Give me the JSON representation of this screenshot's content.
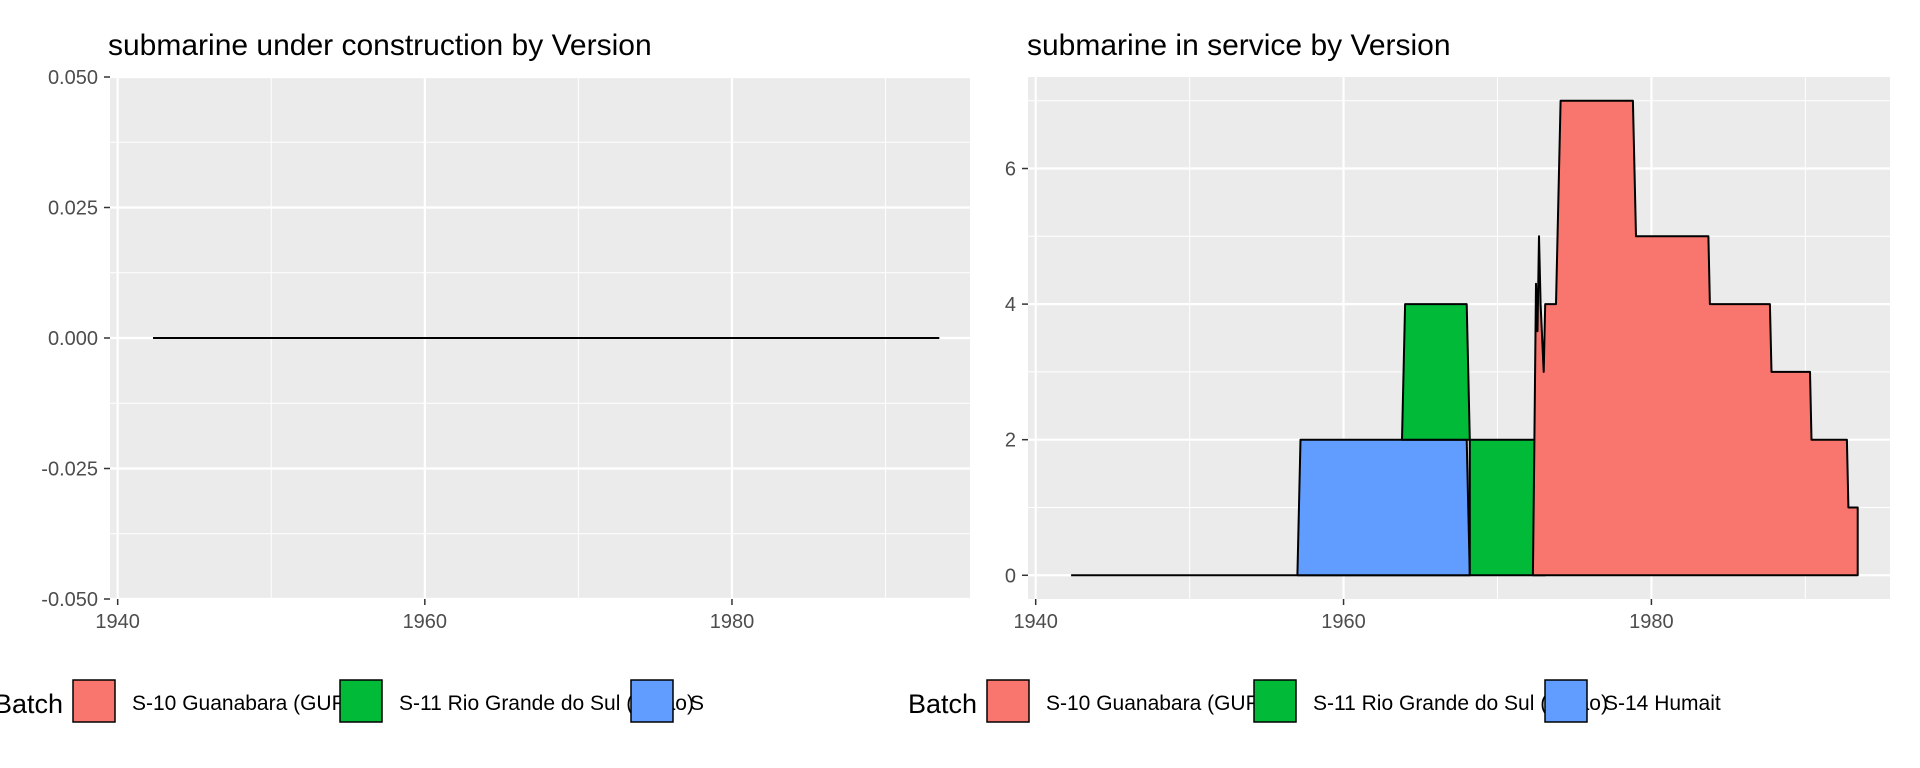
{
  "chart_data": [
    {
      "type": "area",
      "title": "submarine under construction by Version",
      "xlabel": "",
      "ylabel": "",
      "xlim": [
        1939.5,
        1995.5
      ],
      "ylim": [
        -0.05,
        0.05
      ],
      "x_ticks": [
        1940,
        1960,
        1980
      ],
      "x_tick_labels": [
        "1940",
        "1960",
        "1980"
      ],
      "y_ticks": [
        0.05,
        0.025,
        0.0,
        -0.025,
        -0.05
      ],
      "y_tick_labels": [
        "0.050",
        "0.025",
        "0.000",
        "-0.025",
        "-0.050"
      ],
      "grid": true,
      "series": [
        {
          "points": [
            [
              1942.3,
              0
            ],
            [
              1993.5,
              0
            ]
          ]
        }
      ],
      "legend": {
        "title": "Batch",
        "position": "bottom",
        "entries": [
          {
            "label": "S-10 Guanabara (GUPPY)",
            "color": "#F8766D"
          },
          {
            "label": "S-11 Rio Grande do Sul (Balao)",
            "color": "#00BA38"
          },
          {
            "label": "S",
            "color": "#619CFF"
          }
        ]
      }
    },
    {
      "type": "area",
      "title": "submarine in service by Version",
      "xlabel": "",
      "ylabel": "",
      "xlim": [
        1939.5,
        1995.5
      ],
      "ylim": [
        -0.35,
        7.35
      ],
      "x_ticks": [
        1940,
        1960,
        1980
      ],
      "x_tick_labels": [
        "1940",
        "1960",
        "1980"
      ],
      "y_ticks": [
        0,
        2,
        4,
        6
      ],
      "y_tick_labels": [
        "0",
        "2",
        "4",
        "6"
      ],
      "grid": true,
      "series": [
        {
          "name": "S-14 Humaitá (Oberon)",
          "color": "#619CFF",
          "baseline": [
            [
              1942.3,
              0
            ],
            [
              1957.2,
              0
            ],
            [
              1968.2,
              0
            ]
          ],
          "points": [
            [
              1957.0,
              0
            ],
            [
              1957.2,
              2
            ],
            [
              1968.0,
              2
            ],
            [
              1968.2,
              0
            ]
          ]
        },
        {
          "name": "S-11 Rio Grande do Sul (Balao)",
          "color": "#00BA38",
          "points": [
            [
              1963.8,
              2
            ],
            [
              1964.0,
              4
            ],
            [
              1968.0,
              4
            ],
            [
              1968.2,
              2
            ],
            [
              1972.5,
              2
            ],
            [
              1973.1,
              0
            ],
            [
              1968.2,
              0
            ],
            [
              1968.2,
              2
            ],
            [
              1963.8,
              2
            ]
          ]
        },
        {
          "name": "S-10 Guanabara (GUPPY)",
          "color": "#F8766D",
          "points": [
            [
              1972.3,
              0
            ],
            [
              1972.4,
              2
            ],
            [
              1972.5,
              4.3
            ],
            [
              1972.6,
              3.6
            ],
            [
              1972.7,
              5.0
            ],
            [
              1972.8,
              4.0
            ],
            [
              1973.0,
              3.0
            ],
            [
              1973.1,
              4.0
            ],
            [
              1973.8,
              4.0
            ],
            [
              1974.1,
              7.0
            ],
            [
              1978.8,
              7.0
            ],
            [
              1979.0,
              5.0
            ],
            [
              1983.7,
              5.0
            ],
            [
              1983.8,
              4.0
            ],
            [
              1987.7,
              4.0
            ],
            [
              1987.8,
              3.0
            ],
            [
              1990.3,
              3.0
            ],
            [
              1990.4,
              2.0
            ],
            [
              1992.7,
              2.0
            ],
            [
              1992.8,
              1.0
            ],
            [
              1993.4,
              1.0
            ],
            [
              1993.4,
              0
            ]
          ]
        }
      ],
      "legend": {
        "title": "Batch",
        "position": "bottom",
        "entries": [
          {
            "label": "S-10 Guanabara (GUPPY)",
            "color": "#F8766D"
          },
          {
            "label": "S-11 Rio Grande do Sul (Balao)",
            "color": "#00BA38"
          },
          {
            "label": "S-14 Humait",
            "color": "#619CFF"
          }
        ]
      }
    }
  ]
}
